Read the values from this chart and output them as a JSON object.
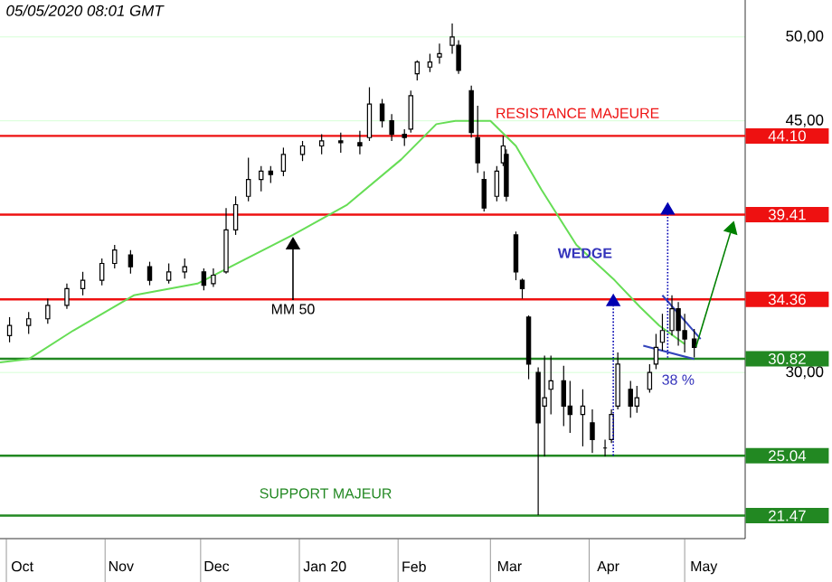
{
  "chart_data": {
    "type": "candlestick",
    "color": "#000000",
    "x": [
      "2019-10-02",
      "2019-10-08",
      "2019-10-14",
      "2019-10-20",
      "2019-10-25",
      "2019-10-31",
      "2019-11-04",
      "2019-11-09",
      "2019-11-15",
      "2019-11-21",
      "2019-11-26",
      "2019-12-02",
      "2019-12-05",
      "2019-12-09",
      "2019-12-12",
      "2019-12-16",
      "2019-12-20",
      "2019-12-23",
      "2019-12-27",
      "2020-01-02",
      "2020-01-08",
      "2020-01-14",
      "2020-01-20",
      "2020-01-23",
      "2020-01-27",
      "2020-01-30",
      "2020-02-03",
      "2020-02-05",
      "2020-02-07",
      "2020-02-11",
      "2020-02-14",
      "2020-02-18",
      "2020-02-20",
      "2020-02-24",
      "2020-02-26",
      "2020-02-28",
      "2020-03-03",
      "2020-03-05",
      "2020-03-06",
      "2020-03-09",
      "2020-03-11",
      "2020-03-13",
      "2020-03-16",
      "2020-03-18",
      "2020-03-20",
      "2020-03-24",
      "2020-03-26",
      "2020-03-30",
      "2020-04-02",
      "2020-04-06",
      "2020-04-08",
      "2020-04-10",
      "2020-04-14",
      "2020-04-16",
      "2020-04-20",
      "2020-04-22",
      "2020-04-24",
      "2020-04-27",
      "2020-04-29",
      "2020-05-01",
      "2020-05-04"
    ],
    "ohlc": [
      [
        32.2,
        33.3,
        31.8,
        32.8
      ],
      [
        32.8,
        33.6,
        32.3,
        33.2
      ],
      [
        33.2,
        34.4,
        32.9,
        34.0
      ],
      [
        34.0,
        35.3,
        33.8,
        35.0
      ],
      [
        35.0,
        36.0,
        34.6,
        35.5
      ],
      [
        35.5,
        36.8,
        35.2,
        36.5
      ],
      [
        36.5,
        37.6,
        36.2,
        37.3
      ],
      [
        37.0,
        37.3,
        35.9,
        36.3
      ],
      [
        36.3,
        36.6,
        35.2,
        35.5
      ],
      [
        35.5,
        36.5,
        35.3,
        36.0
      ],
      [
        36.0,
        36.8,
        35.6,
        36.3
      ],
      [
        36.0,
        36.2,
        34.9,
        35.2
      ],
      [
        35.3,
        36.2,
        35.1,
        35.8
      ],
      [
        36.0,
        39.8,
        35.9,
        38.5
      ],
      [
        38.5,
        40.5,
        38.2,
        40.0
      ],
      [
        40.5,
        42.8,
        40.2,
        41.5
      ],
      [
        41.5,
        42.3,
        40.8,
        42.0
      ],
      [
        42.0,
        42.3,
        41.3,
        41.8
      ],
      [
        42.0,
        43.4,
        41.7,
        43.0
      ],
      [
        43.0,
        43.8,
        42.6,
        43.5
      ],
      [
        43.5,
        44.2,
        43.0,
        43.8
      ],
      [
        43.8,
        44.3,
        43.1,
        43.7
      ],
      [
        43.7,
        44.4,
        43.0,
        43.5
      ],
      [
        44.0,
        47.0,
        43.8,
        46.0
      ],
      [
        46.0,
        46.3,
        44.6,
        45.0
      ],
      [
        45.0,
        45.4,
        43.8,
        44.2
      ],
      [
        44.2,
        44.5,
        43.5,
        44.0
      ],
      [
        44.5,
        46.8,
        44.3,
        46.5
      ],
      [
        47.8,
        48.6,
        47.4,
        48.5
      ],
      [
        48.2,
        49.0,
        47.9,
        48.5
      ],
      [
        48.8,
        49.6,
        48.4,
        49.0
      ],
      [
        49.5,
        50.8,
        49.0,
        50.0
      ],
      [
        49.5,
        49.8,
        47.8,
        48.0
      ],
      [
        46.8,
        47.1,
        44.0,
        44.3
      ],
      [
        44.0,
        45.9,
        41.9,
        42.5
      ],
      [
        41.5,
        42.0,
        39.6,
        39.8
      ],
      [
        40.5,
        42.3,
        40.2,
        42.0
      ],
      [
        42.5,
        44.1,
        42.3,
        43.5
      ],
      [
        43.0,
        43.3,
        40.2,
        40.5
      ],
      [
        38.2,
        38.4,
        35.5,
        36.0
      ],
      [
        35.5,
        35.6,
        34.4,
        35.0
      ],
      [
        33.3,
        33.4,
        29.6,
        30.5
      ],
      [
        30.0,
        30.3,
        21.5,
        27.0
      ],
      [
        28.0,
        31.0,
        25.0,
        28.5
      ],
      [
        29.0,
        31.0,
        27.5,
        29.5
      ],
      [
        29.5,
        30.4,
        26.8,
        28.0
      ],
      [
        28.0,
        29.5,
        26.4,
        27.5
      ],
      [
        27.5,
        29.0,
        25.6,
        28.0
      ],
      [
        27.0,
        27.8,
        25.2,
        26.0
      ],
      [
        25.5,
        26.0,
        25.0,
        25.5
      ],
      [
        26.0,
        27.8,
        25.8,
        27.5
      ],
      [
        28.0,
        31.2,
        27.8,
        30.5
      ],
      [
        29.0,
        29.5,
        27.3,
        28.0
      ],
      [
        28.0,
        29.2,
        27.6,
        28.5
      ],
      [
        29.0,
        30.5,
        28.8,
        30.0
      ],
      [
        30.5,
        32.3,
        30.2,
        31.5
      ],
      [
        31.8,
        33.5,
        31.3,
        32.5
      ],
      [
        32.5,
        34.6,
        32.2,
        33.8
      ],
      [
        33.8,
        34.2,
        31.6,
        32.5
      ],
      [
        32.5,
        33.5,
        31.2,
        32.0
      ],
      [
        32.0,
        32.6,
        30.9,
        31.5
      ]
    ],
    "series": [
      {
        "type": "line",
        "color": "#66dd55",
        "x": [
          "2019-09-29",
          "2019-10-08",
          "2019-10-22",
          "2019-11-10",
          "2019-11-30",
          "2019-12-30",
          "2020-01-16",
          "2020-02-02",
          "2020-02-13",
          "2020-02-19",
          "2020-03-01",
          "2020-03-09",
          "2020-03-17",
          "2020-03-28",
          "2020-04-09",
          "2020-04-17",
          "2020-04-23",
          "2020-05-01"
        ],
        "values": [
          30.6,
          30.8,
          32.5,
          34.6,
          35.3,
          38.2,
          40.0,
          42.7,
          44.8,
          45.0,
          45.0,
          43.5,
          40.9,
          37.6,
          35.5,
          33.9,
          32.8,
          31.7
        ]
      },
      {
        "type": "line",
        "color": "#3344bb",
        "x": [
          "2020-04-24",
          "2020-05-06"
        ],
        "values": [
          34.6,
          32.0
        ]
      },
      {
        "type": "line",
        "color": "#3344bb",
        "x": [
          "2020-04-18",
          "2020-05-04"
        ],
        "values": [
          31.6,
          30.8
        ]
      }
    ],
    "xlim": [
      "2019-09-29",
      "2020-05-20"
    ],
    "xticks": [
      {
        "value": "2019-10-06",
        "label": "Oct"
      },
      {
        "value": "2019-11-06",
        "label": "Nov"
      },
      {
        "value": "2019-12-06",
        "label": "Dec"
      },
      {
        "value": "2020-01-09",
        "label": "Jan 20"
      },
      {
        "value": "2020-02-06",
        "label": "Feb"
      },
      {
        "value": "2020-03-07",
        "label": "Mar"
      },
      {
        "value": "2020-04-07",
        "label": "Apr"
      },
      {
        "value": "2020-05-07",
        "label": "May"
      }
    ],
    "ylim": [
      20.1,
      52.2
    ],
    "yticks": [
      {
        "value": 30,
        "label": "30,00"
      },
      {
        "value": 45,
        "label": "45,00"
      },
      {
        "value": 50,
        "label": "50,00"
      }
    ],
    "grid": "y",
    "ref_lines": [
      {
        "axis": "y",
        "value": 44.1,
        "label": "44.10",
        "color": "#ee1111"
      },
      {
        "axis": "y",
        "value": 39.41,
        "label": "39.41",
        "color": "#ee1111"
      },
      {
        "axis": "y",
        "value": 34.36,
        "label": "34.36",
        "color": "#ee1111"
      },
      {
        "axis": "y",
        "value": 30.82,
        "label": "30.82",
        "color": "#228822"
      },
      {
        "axis": "y",
        "value": 25.04,
        "label": "25.04",
        "color": "#228822"
      },
      {
        "axis": "y",
        "value": 21.47,
        "label": "21.47",
        "color": "#228822"
      }
    ],
    "annotations": [
      "05/05/2020 08:01 GMT",
      "RESISTANCE MAJEURE",
      "SUPPORT MAJEUR",
      {
        "text": "MM 50",
        "x": "2019-12-30",
        "y": 38.2
      },
      "WEDGE",
      "38 %"
    ]
  }
}
